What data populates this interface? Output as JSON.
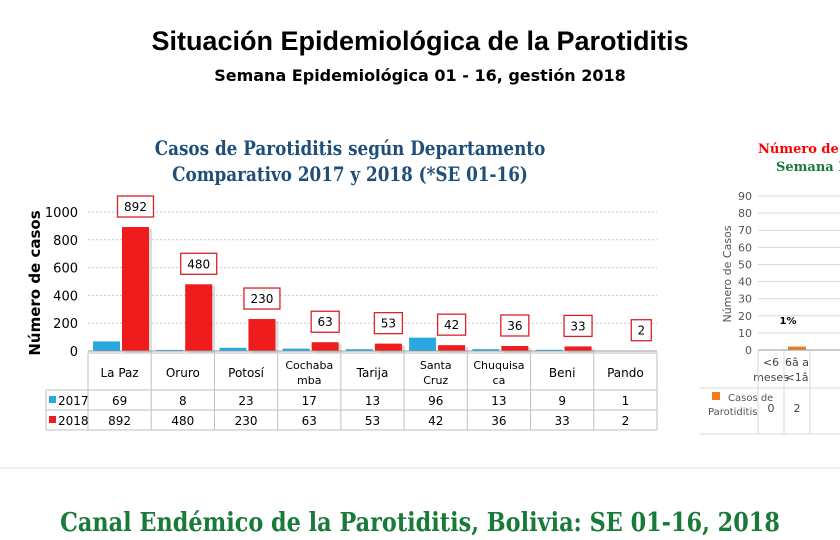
{
  "header": {
    "title": "Situación Epidemiológica de la Parotiditis",
    "subtitle": "Semana Epidemiológica 01 - 16, gestión 2018"
  },
  "chart_data": [
    {
      "type": "bar",
      "title": "Casos de Parotiditis según Departamento",
      "subtitle": "Comparativo 2017 y 2018 (*SE 01-16)",
      "xlabel": "",
      "ylabel": "Número de casos",
      "ylim": [
        0,
        1000
      ],
      "yticks": [
        "0",
        "200",
        "400",
        "600",
        "800",
        "1000"
      ],
      "grid": true,
      "legend": "table-left",
      "categories": [
        [
          "La Paz"
        ],
        [
          "Oruro"
        ],
        [
          "Potosí"
        ],
        [
          "Cochaba",
          "mba"
        ],
        [
          "Tarija"
        ],
        [
          "Santa",
          "Cruz"
        ],
        [
          "Chuquisa",
          "ca"
        ],
        [
          "Beni"
        ],
        [
          "Pando"
        ]
      ],
      "series": [
        {
          "name": "2017",
          "color": "#29a8e0",
          "values": [
            69,
            8,
            23,
            17,
            13,
            96,
            13,
            9,
            1
          ]
        },
        {
          "name": "2018",
          "color": "#ee1c1c",
          "values": [
            892,
            480,
            230,
            63,
            53,
            42,
            36,
            33,
            2
          ]
        }
      ]
    },
    {
      "type": "bar",
      "title": "Número de ca",
      "subtitle": "Semana Ep",
      "xlabel": "",
      "ylabel": "Número de Casos",
      "ylim": [
        0,
        90
      ],
      "yticks": [
        "0",
        "10",
        "20",
        "30",
        "40",
        "50",
        "60",
        "70",
        "80",
        "90"
      ],
      "categories": [
        [
          "<6",
          "meses"
        ],
        [
          "6â a",
          "<1â"
        ]
      ],
      "series": [
        {
          "name": "Casos de Parotiditis",
          "color": "#f07d1a",
          "values": [
            0,
            2
          ]
        }
      ],
      "annotations": [
        "1%"
      ]
    }
  ],
  "section2": {
    "title": "Canal Endémico de la Parotiditis, Bolivia: SE 01-16, 2018"
  }
}
